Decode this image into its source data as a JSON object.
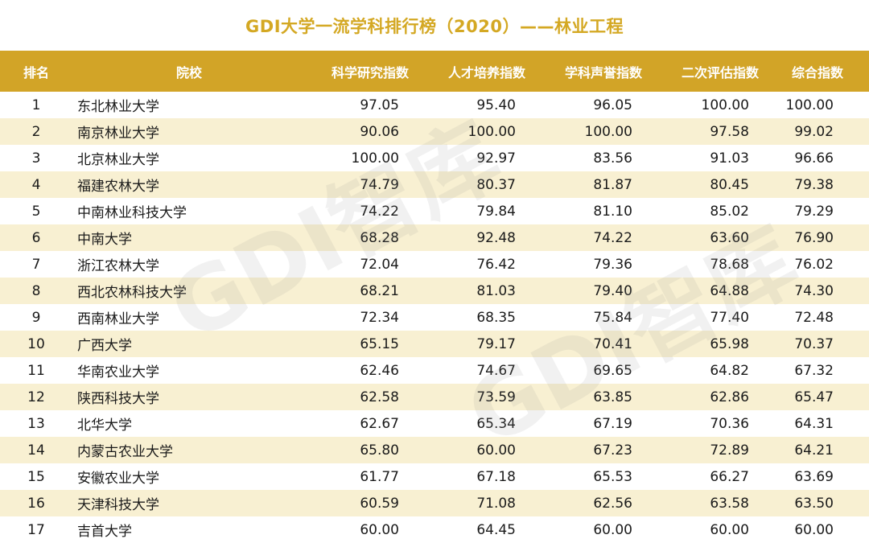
{
  "title": "GDI大学一流学科排行榜（2020）——林业工程",
  "colors": {
    "accent": "#d2a427",
    "title": "#d4a823",
    "alt_row": "#f8f0d2"
  },
  "table": {
    "headers": [
      "排名",
      "院校",
      "科学研究指数",
      "人才培养指数",
      "学科声誉指数",
      "二次评估指数",
      "综合指数"
    ],
    "rows": [
      [
        "1",
        "东北林业大学",
        "97.05",
        "95.40",
        "96.05",
        "100.00",
        "100.00"
      ],
      [
        "2",
        "南京林业大学",
        "90.06",
        "100.00",
        "100.00",
        "97.58",
        "99.02"
      ],
      [
        "3",
        "北京林业大学",
        "100.00",
        "92.97",
        "83.56",
        "91.03",
        "96.66"
      ],
      [
        "4",
        "福建农林大学",
        "74.79",
        "80.37",
        "81.87",
        "80.45",
        "79.38"
      ],
      [
        "5",
        "中南林业科技大学",
        "74.22",
        "79.84",
        "81.10",
        "85.02",
        "79.29"
      ],
      [
        "6",
        "中南大学",
        "68.28",
        "92.48",
        "74.22",
        "63.60",
        "76.90"
      ],
      [
        "7",
        "浙江农林大学",
        "72.04",
        "76.42",
        "79.36",
        "78.68",
        "76.02"
      ],
      [
        "8",
        "西北农林科技大学",
        "68.21",
        "81.03",
        "79.40",
        "64.88",
        "74.30"
      ],
      [
        "9",
        "西南林业大学",
        "72.34",
        "68.35",
        "75.84",
        "77.40",
        "72.48"
      ],
      [
        "10",
        "广西大学",
        "65.15",
        "79.17",
        "70.41",
        "65.98",
        "70.37"
      ],
      [
        "11",
        "华南农业大学",
        "62.46",
        "74.67",
        "69.65",
        "64.82",
        "67.32"
      ],
      [
        "12",
        "陕西科技大学",
        "62.58",
        "73.59",
        "63.85",
        "62.86",
        "65.47"
      ],
      [
        "13",
        "北华大学",
        "62.67",
        "65.34",
        "67.19",
        "70.36",
        "64.31"
      ],
      [
        "14",
        "内蒙古农业大学",
        "65.80",
        "60.00",
        "67.23",
        "72.89",
        "64.21"
      ],
      [
        "15",
        "安徽农业大学",
        "61.77",
        "67.18",
        "65.53",
        "66.27",
        "63.69"
      ],
      [
        "16",
        "天津科技大学",
        "60.59",
        "71.08",
        "62.56",
        "63.58",
        "63.50"
      ],
      [
        "17",
        "吉首大学",
        "60.00",
        "64.45",
        "60.00",
        "60.00",
        "60.00"
      ]
    ]
  }
}
